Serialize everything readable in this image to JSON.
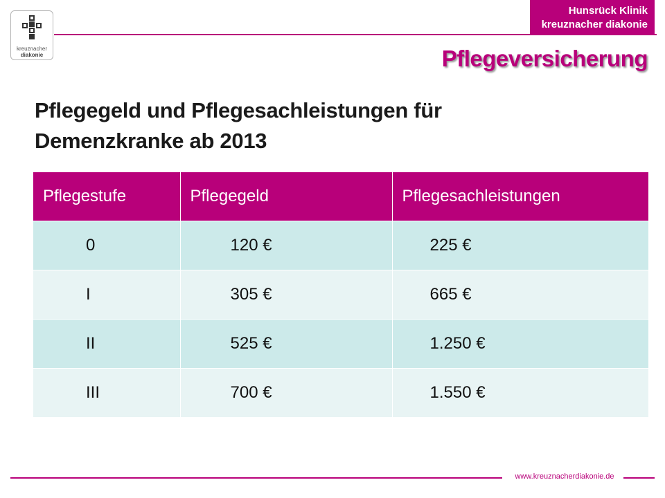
{
  "logo": {
    "line1": "kreuznacher",
    "line2": "diakonie"
  },
  "brand": {
    "line1": "Hunsrück Klinik",
    "line2": "kreuznacher diakonie"
  },
  "section_title": "Pflegeversicherung",
  "headline": {
    "line1": "Pflegegeld und Pflegesachleistungen für",
    "line2": "Demenzkranke ab 2013"
  },
  "table": {
    "headers": [
      "Pflegestufe",
      "Pflegegeld",
      "Pflegesachleistungen"
    ],
    "rows": [
      [
        "0",
        "120 €",
        "225 €"
      ],
      [
        "I",
        "305 €",
        "665 €"
      ],
      [
        "II",
        "525 €",
        "1.250 €"
      ],
      [
        "III",
        "700 €",
        "1.550 €"
      ]
    ]
  },
  "footer": {
    "url": "www.kreuznacherdiakonie.de"
  },
  "colors": {
    "accent": "#b8007a",
    "row_odd": "#cceaea",
    "row_even": "#e8f4f4"
  }
}
